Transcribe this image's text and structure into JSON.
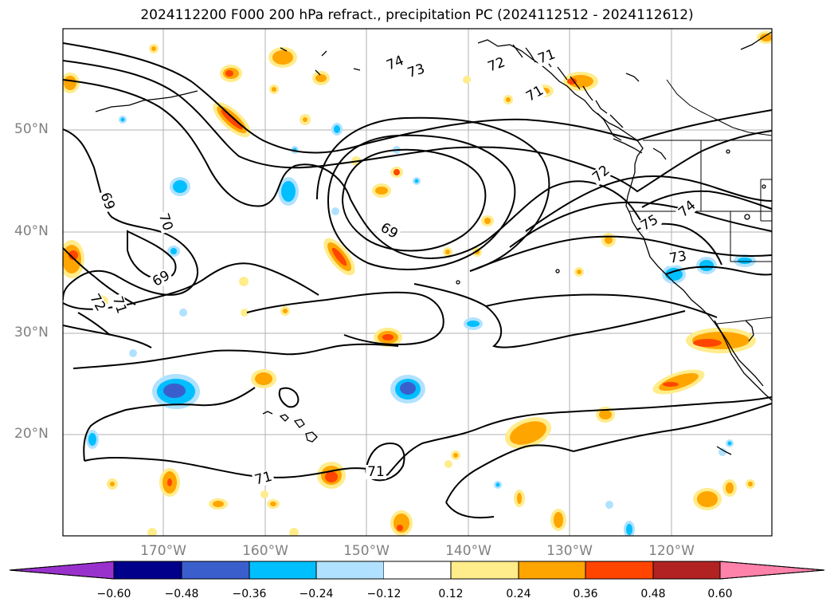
{
  "title": "2024112200 F000 200 hPa refract., precipitation PC (2024112512 - 2024112612)",
  "lat_labels": [
    "50°N",
    "40°N",
    "30°N",
    "20°N"
  ],
  "lon_labels": [
    "170°W",
    "160°W",
    "150°W",
    "140°W",
    "130°W",
    "120°W"
  ],
  "contour_labels": [
    "74",
    "73",
    "72",
    "71",
    "71",
    "69",
    "70",
    "69",
    "72",
    "71",
    "69",
    "72",
    "75",
    "74",
    "73",
    "71",
    "71"
  ],
  "colorbar": {
    "tick_labels": [
      "−0.60",
      "−0.48",
      "−0.36",
      "−0.24",
      "−0.12",
      "0.12",
      "0.24",
      "0.36",
      "0.48",
      "0.60"
    ],
    "colors": [
      "#9932cc",
      "#00008b",
      "#3a5fcd",
      "#00bfff",
      "#b0e2ff",
      "#ffffff",
      "#ffec8b",
      "#ffa500",
      "#ff4500",
      "#b22222",
      "#ff82ab"
    ]
  },
  "colors": {
    "gridline": "#b0b0b0",
    "contour": "#000000",
    "tick_text": "#808080"
  }
}
